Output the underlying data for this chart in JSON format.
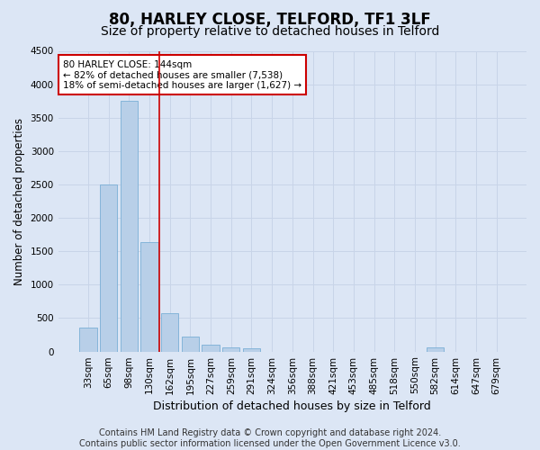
{
  "title1": "80, HARLEY CLOSE, TELFORD, TF1 3LF",
  "title2": "Size of property relative to detached houses in Telford",
  "xlabel": "Distribution of detached houses by size in Telford",
  "ylabel": "Number of detached properties",
  "categories": [
    "33sqm",
    "65sqm",
    "98sqm",
    "130sqm",
    "162sqm",
    "195sqm",
    "227sqm",
    "259sqm",
    "291sqm",
    "324sqm",
    "356sqm",
    "388sqm",
    "421sqm",
    "453sqm",
    "485sqm",
    "518sqm",
    "550sqm",
    "582sqm",
    "614sqm",
    "647sqm",
    "679sqm"
  ],
  "values": [
    360,
    2500,
    3750,
    1640,
    580,
    220,
    100,
    60,
    50,
    0,
    0,
    0,
    0,
    0,
    0,
    0,
    0,
    60,
    0,
    0,
    0
  ],
  "bar_color": "#b8cfe8",
  "bar_edge_color": "#7aaed6",
  "grid_color": "#c8d4e8",
  "background_color": "#dce6f5",
  "vline_x_index": 3,
  "vline_color": "#cc0000",
  "annotation_text": "80 HARLEY CLOSE: 144sqm\n← 82% of detached houses are smaller (7,538)\n18% of semi-detached houses are larger (1,627) →",
  "annotation_box_color": "#ffffff",
  "annotation_box_edge": "#cc0000",
  "footer": "Contains HM Land Registry data © Crown copyright and database right 2024.\nContains public sector information licensed under the Open Government Licence v3.0.",
  "ylim": [
    0,
    4500
  ],
  "yticks": [
    0,
    500,
    1000,
    1500,
    2000,
    2500,
    3000,
    3500,
    4000,
    4500
  ],
  "title1_fontsize": 12,
  "title2_fontsize": 10,
  "xlabel_fontsize": 9,
  "ylabel_fontsize": 8.5,
  "tick_fontsize": 7.5,
  "annot_fontsize": 7.5,
  "footer_fontsize": 7
}
